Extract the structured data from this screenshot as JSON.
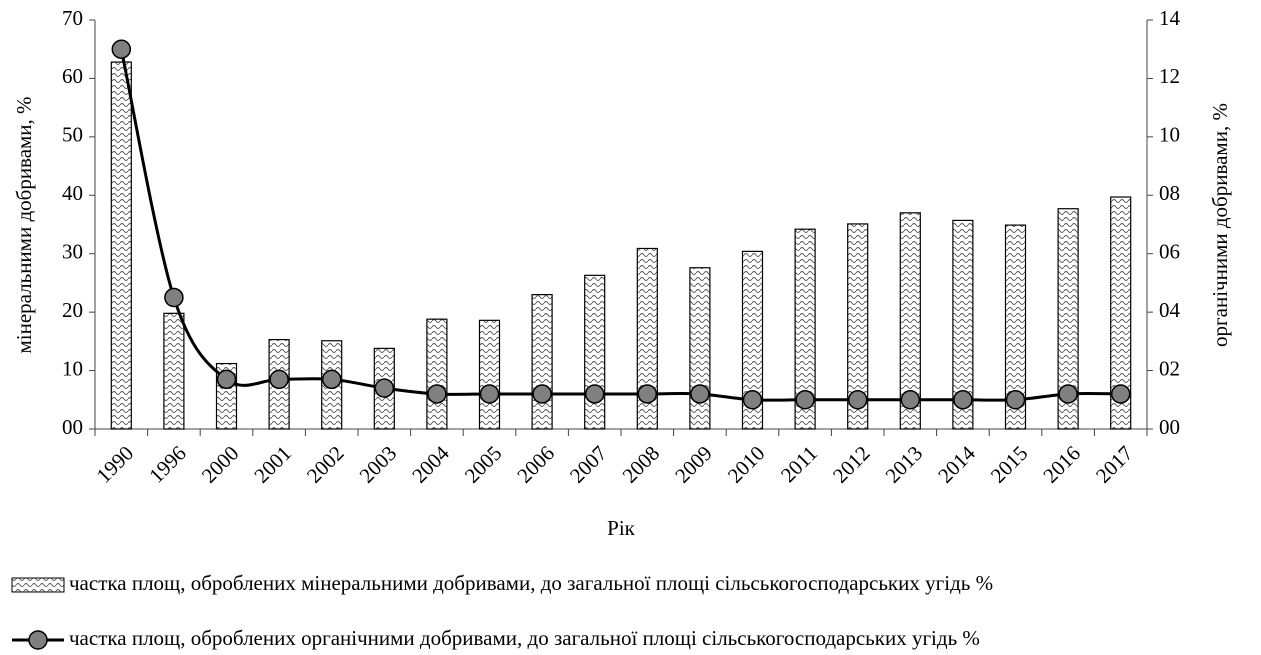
{
  "chart_data": {
    "type": "bar_line",
    "x_label": "Рік",
    "y_label": "мінеральними добривами, %",
    "y2_label": "органічними добривами, %",
    "categories": [
      "1990",
      "1996",
      "2000",
      "2001",
      "2002",
      "2003",
      "2004",
      "2005",
      "2006",
      "2007",
      "2008",
      "2009",
      "2010",
      "2011",
      "2012",
      "2013",
      "2014",
      "2015",
      "2016",
      "2017"
    ],
    "series": [
      {
        "name": "частка площ, оброблених мінеральними добривами, до загальної площі сільськогосподарських угідь %",
        "type": "bar",
        "color": "#000000",
        "values": [
          62.8,
          19.8,
          11.2,
          15.3,
          15.1,
          13.8,
          18.8,
          18.6,
          23.0,
          26.3,
          30.9,
          27.6,
          30.4,
          34.2,
          35.1,
          37.0,
          35.7,
          34.9,
          37.7,
          39.7
        ]
      },
      {
        "name": "частка площ, оброблених органічними добривами, до загальної площі сільськогосподарських угідь %",
        "type": "line",
        "axis": "y2",
        "color": "#000000",
        "marker_color": "#808080",
        "values": [
          13.0,
          4.5,
          1.7,
          1.7,
          1.7,
          1.4,
          1.2,
          1.2,
          1.2,
          1.2,
          1.2,
          1.2,
          1.0,
          1.0,
          1.0,
          1.0,
          1.0,
          1.0,
          1.2,
          1.2
        ]
      }
    ],
    "ylim": [
      0,
      70
    ],
    "yticks": [
      {
        "value": 0,
        "label": "00"
      },
      10,
      20,
      30,
      40,
      50,
      60,
      70
    ],
    "y2lim": [
      0,
      14
    ],
    "y2ticks": [
      {
        "value": 0,
        "label": "00"
      },
      {
        "value": 2,
        "label": "02"
      },
      {
        "value": 4,
        "label": "04"
      },
      {
        "value": 6,
        "label": "06"
      },
      {
        "value": 8,
        "label": "08"
      },
      10,
      12,
      14
    ],
    "grid": false
  }
}
